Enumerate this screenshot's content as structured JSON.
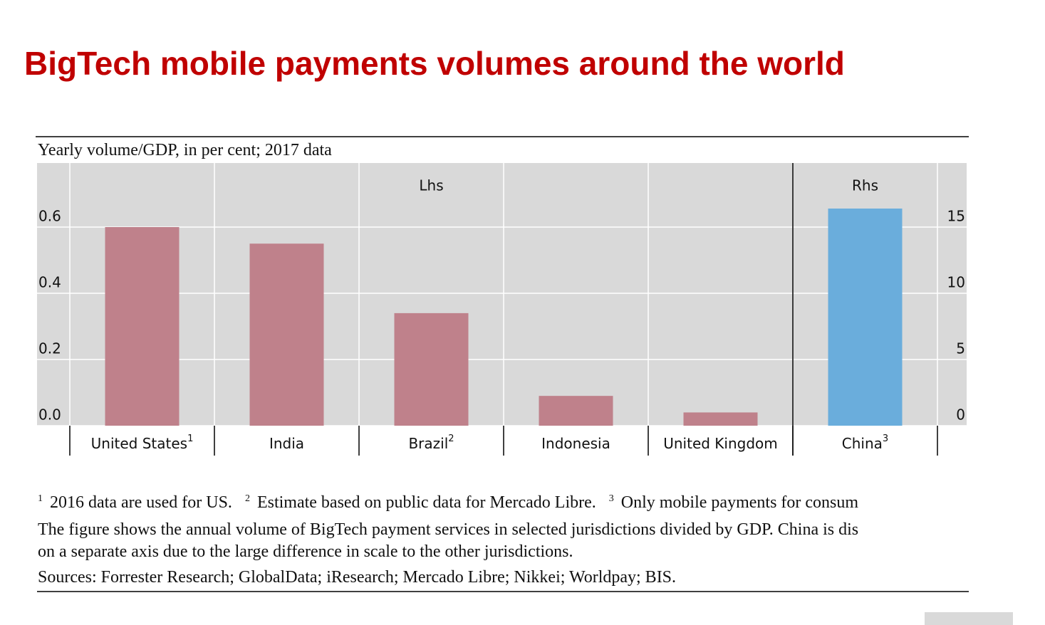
{
  "chart_data": {
    "type": "bar",
    "title": "BigTech mobile payments volumes around the world",
    "subtitle": "Yearly volume/GDP, in per cent; 2017 data",
    "categories": [
      "United States",
      "India",
      "Brazil",
      "Indonesia",
      "United Kingdom",
      "China"
    ],
    "category_notes": [
      "1",
      null,
      "2",
      null,
      null,
      "3"
    ],
    "panel_labels": [
      "Lhs",
      "Rhs"
    ],
    "series": [
      {
        "name": "Lhs",
        "color": "#bf818b",
        "values": [
          0.6,
          0.55,
          0.34,
          0.09,
          0.04,
          null
        ]
      },
      {
        "name": "Rhs",
        "color": "#6aaddc",
        "axis": "y2",
        "values": [
          null,
          null,
          null,
          null,
          null,
          16.4
        ]
      }
    ],
    "ylim": [
      0,
      0.8
    ],
    "yticks": [
      {
        "value": 0,
        "label": "0.0"
      },
      0.2,
      0.4,
      0.6
    ],
    "y2lim": [
      0,
      20
    ],
    "y2ticks": [
      0,
      5,
      10,
      15
    ],
    "grid": true,
    "footnotes": [
      {
        "marker": "1",
        "text": "2016 data are used for US."
      },
      {
        "marker": "2",
        "text": "Estimate based on public data for Mercado Libre."
      },
      {
        "marker": "3",
        "text": "Only mobile payments for consum"
      }
    ],
    "notes": [
      "The figure shows the annual volume of BigTech payment services in selected jurisdictions divided by GDP. China is dis",
      "on a separate axis due to the large difference in scale to the other jurisdictions."
    ],
    "sources": "Sources: Forrester Research; GlobalData; iResearch; Mercado Libre; Nikkei; Worldpay; BIS."
  }
}
